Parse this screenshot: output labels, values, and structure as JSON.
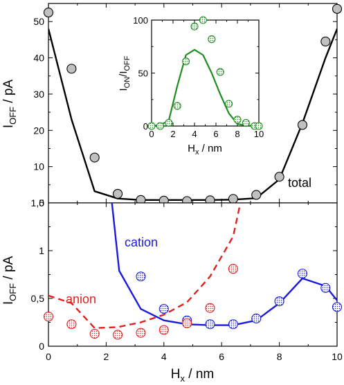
{
  "colors": {
    "total": "#000000",
    "cation": "#1a1adc",
    "anion": "#e02020",
    "inset": "#1f8c1f",
    "marker_gray": "#c0c0c0"
  },
  "chart_data": [
    {
      "type": "line",
      "panel": "top",
      "xlabel_main": "H",
      "xlabel_sub": "x",
      "xlabel_rest": " / nm",
      "ylabel_main": "I",
      "ylabel_sub": "OFF",
      "ylabel_rest": " / pA",
      "xlim": [
        0,
        10
      ],
      "ylim": [
        0,
        55
      ],
      "xticks": [
        "0",
        "2",
        "4",
        "6",
        "8",
        "10"
      ],
      "yticks": [
        {
          "v": 0,
          "t": "0"
        },
        {
          "v": 10,
          "t": "10"
        },
        {
          "v": 20,
          "t": "20"
        },
        {
          "v": 30,
          "t": "30"
        },
        {
          "v": 40,
          "t": "40"
        },
        {
          "v": 50,
          "t": "50"
        }
      ],
      "annotation": "total",
      "series": [
        {
          "kind": "line",
          "color": "#000000",
          "x": [
            0,
            0.8,
            1.6,
            2.4,
            3.2,
            4.0,
            4.8,
            5.6,
            6.4,
            7.2,
            8.0,
            8.8,
            9.6,
            10.0
          ],
          "y": [
            48,
            23,
            3.2,
            1.2,
            0.8,
            0.8,
            0.8,
            0.8,
            0.9,
            1.3,
            6.5,
            22,
            40,
            48
          ]
        },
        {
          "kind": "scatter",
          "color": "#c0c0c0",
          "x": [
            0,
            0.8,
            1.6,
            2.4,
            3.2,
            4.0,
            4.8,
            5.6,
            6.4,
            7.2,
            8.0,
            8.8,
            9.6,
            10.0
          ],
          "y": [
            52.5,
            37,
            12.5,
            2.5,
            0.8,
            0.6,
            0.5,
            0.7,
            1.1,
            2.2,
            7.2,
            21.5,
            44.5,
            53.5
          ]
        }
      ]
    },
    {
      "type": "line",
      "panel": "inset",
      "xlabel_main": "H",
      "xlabel_sub": "x",
      "xlabel_rest": " / nm",
      "ylabel_main": "I",
      "ylabel_sub1": "ON",
      "ylabel_mid": "/I",
      "ylabel_sub2": "OFF",
      "xlim": [
        0,
        10
      ],
      "ylim": [
        0,
        100
      ],
      "xticks": [
        "0",
        "2",
        "4",
        "6",
        "8",
        "10"
      ],
      "yticks": [
        {
          "v": 0,
          "t": "0"
        },
        {
          "v": 50,
          "t": "50"
        },
        {
          "v": 100,
          "t": "100"
        }
      ],
      "series": [
        {
          "kind": "line",
          "color": "#1f8c1f",
          "x": [
            0,
            0.8,
            1.6,
            2.4,
            3.2,
            4.0,
            4.8,
            5.6,
            6.4,
            7.2,
            8.0,
            8.8,
            9.6,
            10.0
          ],
          "y": [
            0,
            1,
            5,
            38,
            67,
            72,
            67,
            50,
            30,
            12,
            2,
            0.5,
            0,
            0
          ]
        },
        {
          "kind": "scatter",
          "color": "#1f8c1f",
          "x": [
            0,
            0.8,
            1.6,
            2.4,
            3.2,
            4.0,
            4.8,
            5.6,
            6.4,
            7.2,
            8.0,
            8.8,
            9.6,
            10.0
          ],
          "y": [
            0,
            0,
            3,
            19,
            61,
            94,
            100,
            82,
            51,
            21,
            6,
            3,
            0,
            0
          ]
        }
      ]
    },
    {
      "type": "line",
      "panel": "bottom",
      "xlabel_main": "H",
      "xlabel_sub": "x",
      "xlabel_rest": " / nm",
      "ylabel_main": "I",
      "ylabel_sub": "OFF",
      "ylabel_rest": " / pA",
      "xlim": [
        0,
        10
      ],
      "ylim": [
        0,
        1.5
      ],
      "xticks": [
        "0",
        "2",
        "4",
        "6",
        "8",
        "10"
      ],
      "yticks": [
        {
          "v": 0,
          "t": "0"
        },
        {
          "v": 0.5,
          "t": "0,5"
        },
        {
          "v": 1.0,
          "t": "1"
        },
        {
          "v": 1.5,
          "t": "1,5"
        }
      ],
      "labels": {
        "cation": "cation",
        "anion": "anion"
      },
      "series": [
        {
          "kind": "line",
          "color": "#1a1adc",
          "x": [
            2.2,
            2.45,
            3.2,
            4.0,
            4.8,
            5.6,
            6.4,
            7.2,
            8.0,
            8.8,
            9.6,
            10.0
          ],
          "y": [
            1.5,
            0.79,
            0.39,
            0.27,
            0.23,
            0.22,
            0.22,
            0.27,
            0.45,
            0.71,
            0.63,
            0.48
          ]
        },
        {
          "kind": "line",
          "dashed": true,
          "color": "#e02020",
          "x": [
            0,
            0.8,
            1.6,
            2.4,
            3.2,
            4.0,
            4.8,
            5.6,
            6.4,
            6.65
          ],
          "y": [
            0.53,
            0.45,
            0.19,
            0.2,
            0.25,
            0.33,
            0.46,
            0.73,
            1.15,
            1.5
          ]
        },
        {
          "kind": "scatter",
          "color": "#1a1adc",
          "x": [
            3.2,
            4.0,
            4.8,
            5.6,
            6.4,
            7.2,
            8.0,
            8.8,
            9.6,
            10.0
          ],
          "y": [
            0.73,
            0.39,
            0.27,
            0.23,
            0.23,
            0.29,
            0.47,
            0.76,
            0.61,
            0.41
          ]
        },
        {
          "kind": "scatter",
          "color": "#e02020",
          "x": [
            0,
            0.8,
            1.6,
            2.4,
            3.2,
            4.0,
            4.8,
            5.6,
            6.4
          ],
          "y": [
            0.31,
            0.23,
            0.13,
            0.12,
            0.14,
            0.17,
            0.24,
            0.4,
            0.81
          ]
        }
      ]
    }
  ]
}
